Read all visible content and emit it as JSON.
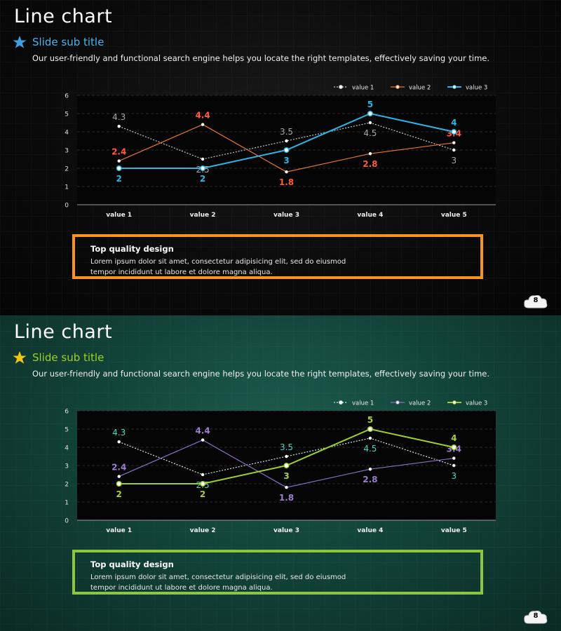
{
  "slides": [
    {
      "id": "dark",
      "title": "Line chart",
      "subtitle": "Slide sub title",
      "description": "Our user-friendly and functional search engine helps you locate the right templates, effectively saving your time.",
      "textbox": {
        "title": "Top quality design",
        "body": "Lorem ipsum dolor sit amet, consectetur adipisicing elit, sed do eiusmod tempor incididunt ut labore et dolore magna aliqua."
      },
      "page_number": "8",
      "colors": {
        "star": "#3aa0e0",
        "subtitle": "#4ab4f0",
        "textbox_border": "#f7931e",
        "series": [
          "#c8c8c8",
          "#e8762b",
          "#29b6e6"
        ],
        "labels": [
          "#a8a8a8",
          "#ff5a3c",
          "#29b6e6"
        ]
      }
    },
    {
      "id": "green",
      "title": "Line chart",
      "subtitle": "Slide sub title",
      "description": "Our user-friendly and functional search engine helps you locate the right templates, effectively saving your time.",
      "textbox": {
        "title": "Top quality design",
        "body": "Lorem ipsum dolor sit amet, consectetur adipisicing elit, sed do eiusmod tempor incididunt ut labore et dolore magna aliqua."
      },
      "page_number": "8",
      "colors": {
        "star": "#f2c318",
        "subtitle": "#9ed02a",
        "textbox_border": "#8cc63e",
        "series": [
          "#cfe9e4",
          "#8a6fc4",
          "#9ed02a"
        ],
        "labels": [
          "#4fd6c0",
          "#9a7fd0",
          "#a8cf3a"
        ]
      }
    }
  ],
  "chart_data": [
    {
      "type": "line",
      "categories": [
        "value 1",
        "value 2",
        "value 3",
        "value 4",
        "value 5"
      ],
      "series": [
        {
          "name": "value 1",
          "values": [
            4.3,
            2.5,
            3.5,
            4.5,
            3
          ]
        },
        {
          "name": "value 2",
          "values": [
            2.4,
            4.4,
            1.8,
            2.8,
            3.4
          ]
        },
        {
          "name": "value 3",
          "values": [
            2,
            2,
            3,
            5,
            4
          ]
        }
      ],
      "ylim": [
        0,
        6
      ],
      "yticks": [
        "0",
        "1",
        "2",
        "3",
        "4",
        "5",
        "6"
      ],
      "grid": true,
      "legend": "top-right"
    },
    {
      "type": "line",
      "categories": [
        "value 1",
        "value 2",
        "value 3",
        "value 4",
        "value 5"
      ],
      "series": [
        {
          "name": "value 1",
          "values": [
            4.3,
            2.5,
            3.5,
            4.5,
            3
          ]
        },
        {
          "name": "value 2",
          "values": [
            2.4,
            4.4,
            1.8,
            2.8,
            3.4
          ]
        },
        {
          "name": "value 3",
          "values": [
            2,
            2,
            3,
            5,
            4
          ]
        }
      ],
      "ylim": [
        0,
        6
      ],
      "yticks": [
        "0",
        "1",
        "2",
        "3",
        "4",
        "5",
        "6"
      ],
      "grid": true,
      "legend": "top-right"
    }
  ]
}
